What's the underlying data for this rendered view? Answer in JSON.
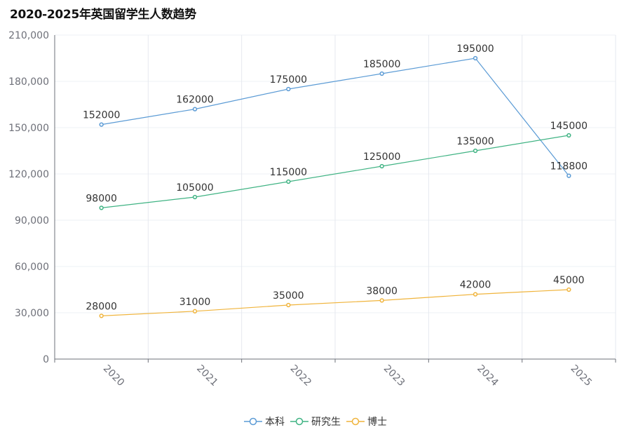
{
  "chart_data": {
    "type": "line",
    "title": "2020-2025年英国留学生人数趋势",
    "categories": [
      "2020",
      "2021",
      "2022",
      "2023",
      "2024",
      "2025"
    ],
    "y_tick_labels": [
      "0",
      "30,000",
      "60,000",
      "90,000",
      "120,000",
      "150,000",
      "180,000",
      "210,000"
    ],
    "ylim": [
      0,
      210000
    ],
    "grid": true,
    "legend_position": "bottom-center",
    "series": [
      {
        "name": "本科",
        "color": "#5b9bd5",
        "values": [
          152000,
          162000,
          175000,
          185000,
          195000,
          118800
        ]
      },
      {
        "name": "研究生",
        "color": "#3fb383",
        "values": [
          98000,
          105000,
          115000,
          125000,
          135000,
          145000
        ]
      },
      {
        "name": "博士",
        "color": "#f0b43c",
        "values": [
          28000,
          31000,
          35000,
          38000,
          42000,
          45000
        ]
      }
    ]
  }
}
